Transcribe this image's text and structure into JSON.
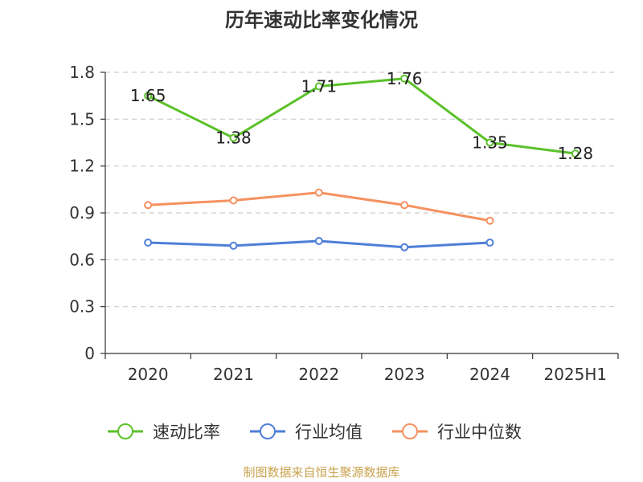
{
  "chart_data": {
    "type": "line",
    "title": "历年速动比率变化情况",
    "categories": [
      "2020",
      "2021",
      "2022",
      "2023",
      "2024",
      "2025H1"
    ],
    "ylim": [
      0,
      1.8
    ],
    "yticks": [
      "0",
      "0.3",
      "0.6",
      "0.9",
      "1.2",
      "1.5",
      "1.8"
    ],
    "grid": true,
    "legend_position": "bottom",
    "series": [
      {
        "name": "速动比率",
        "color": "#5bc12a",
        "values": [
          1.65,
          1.38,
          1.71,
          1.76,
          1.35,
          1.28
        ],
        "labels": [
          "1.65",
          "1.38",
          "1.71",
          "1.76",
          "1.35",
          "1.28"
        ]
      },
      {
        "name": "行业均值",
        "color": "#4f7fd8",
        "values": [
          0.71,
          0.69,
          0.72,
          0.68,
          0.71,
          null
        ]
      },
      {
        "name": "行业中位数",
        "color": "#f59160",
        "values": [
          0.95,
          0.98,
          1.03,
          0.95,
          0.85,
          null
        ]
      }
    ],
    "source": "制图数据来自恒生聚源数据库"
  }
}
